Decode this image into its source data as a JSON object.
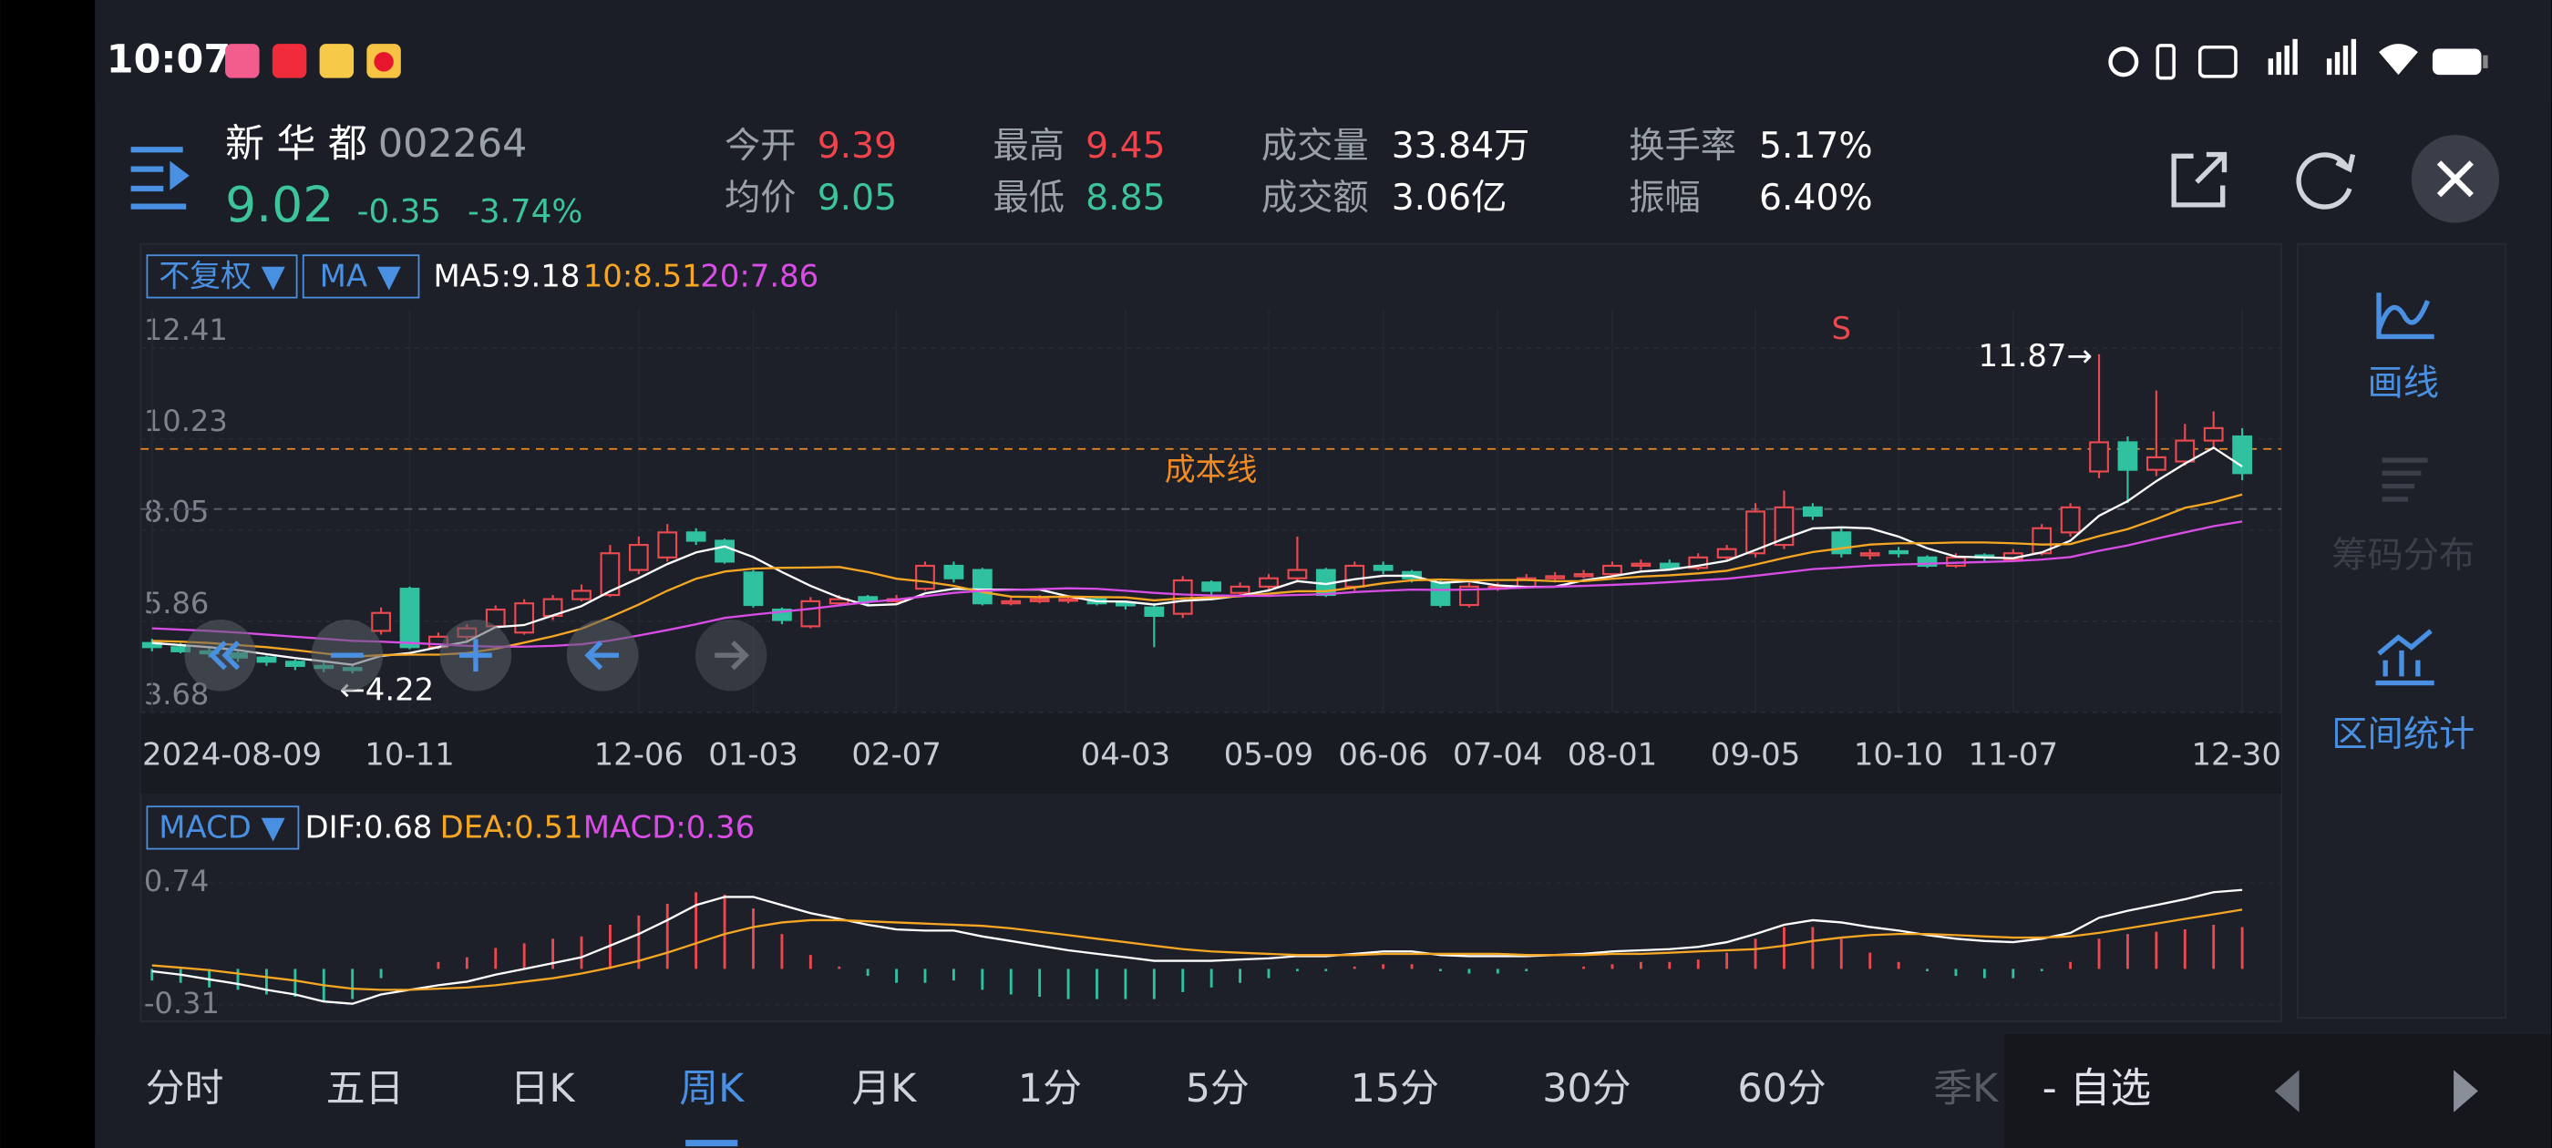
{
  "status_bar": {
    "time": "10:07"
  },
  "stock": {
    "name": "新 华 都",
    "code": "002264",
    "price": "9.02",
    "change": "-0.35",
    "change_pct": "-3.74%"
  },
  "stats": [
    {
      "label": "今开",
      "value": "9.39",
      "color": "#f0444c"
    },
    {
      "label": "均价",
      "value": "9.05",
      "color": "#3cc49a"
    },
    {
      "label": "最高",
      "value": "9.45",
      "color": "#f0444c"
    },
    {
      "label": "最低",
      "value": "8.85",
      "color": "#3cc49a"
    },
    {
      "label": "成交量",
      "value": "33.84万",
      "color": "#ffffff"
    },
    {
      "label": "成交额",
      "value": "3.06亿",
      "color": "#ffffff"
    },
    {
      "label": "换手率",
      "value": "5.17%",
      "color": "#ffffff"
    },
    {
      "label": "振幅",
      "value": "6.40%",
      "color": "#ffffff"
    }
  ],
  "chart_toolbar": {
    "adjust": "不复权 ▼",
    "indicator": "MA ▼"
  },
  "macd_toolbar": {
    "indicator": "MACD ▼"
  },
  "side_panel": [
    {
      "label": "画线",
      "enabled": true
    },
    {
      "label": "筹码分布",
      "enabled": false
    },
    {
      "label": "区间统计",
      "enabled": true
    }
  ],
  "tabs": [
    "分时",
    "五日",
    "日K",
    "周K",
    "月K",
    "1分",
    "5分",
    "15分",
    "30分",
    "60分",
    "季K"
  ],
  "active_tab": 3,
  "footer": {
    "watch": "- 自选"
  },
  "chart_data": [
    {
      "type": "candlestick",
      "up_color": "#ea4a4f",
      "down_color": "#2fc1a0",
      "ylim": [
        3.68,
        12.41
      ],
      "yticks": [
        12.41,
        10.23,
        8.05,
        5.86,
        3.68
      ],
      "grid": true,
      "categories": [
        "2024-08-09",
        null,
        null,
        null,
        null,
        null,
        null,
        null,
        null,
        "10-11",
        null,
        null,
        null,
        null,
        null,
        null,
        null,
        "12-06",
        null,
        null,
        null,
        "01-03",
        null,
        null,
        null,
        null,
        "02-07",
        null,
        null,
        null,
        null,
        null,
        null,
        null,
        "04-03",
        null,
        null,
        null,
        null,
        "05-09",
        null,
        null,
        null,
        "06-06",
        null,
        null,
        null,
        "07-04",
        null,
        null,
        null,
        "08-01",
        null,
        null,
        null,
        null,
        "09-05",
        null,
        null,
        null,
        null,
        "10-10",
        null,
        null,
        null,
        "11-07",
        null,
        null,
        null,
        null,
        null,
        null,
        null,
        "12-30"
      ],
      "open": [
        4.95,
        4.85,
        4.75,
        4.7,
        4.6,
        4.5,
        4.4,
        4.35,
        5.24,
        6.25,
        4.85,
        5.1,
        5.35,
        5.2,
        5.6,
        6.0,
        6.1,
        6.7,
        7.0,
        7.6,
        7.4,
        6.64,
        5.75,
        5.35,
        5.9,
        6.05,
        5.95,
        6.25,
        6.8,
        6.7,
        5.9,
        5.95,
        6.0,
        6.0,
        5.9,
        5.8,
        5.65,
        6.4,
        6.15,
        6.3,
        6.5,
        6.7,
        6.3,
        6.8,
        6.65,
        6.4,
        5.86,
        6.25,
        6.3,
        6.5,
        6.55,
        6.6,
        6.8,
        6.85,
        6.75,
        7.0,
        7.1,
        7.3,
        8.2,
        7.6,
        7.05,
        7.15,
        7.0,
        6.8,
        7.05,
        6.95,
        7.1,
        7.6,
        9.06,
        9.76,
        9.1,
        9.3,
        9.8,
        9.9
      ],
      "high": [
        5.05,
        4.95,
        4.85,
        4.75,
        4.65,
        4.55,
        4.5,
        4.45,
        5.8,
        6.3,
        5.2,
        5.4,
        5.85,
        6.0,
        6.1,
        6.35,
        7.3,
        7.5,
        7.8,
        7.7,
        7.45,
        6.7,
        5.8,
        6.05,
        6.1,
        6.1,
        6.1,
        6.9,
        6.9,
        6.75,
        6.05,
        6.1,
        6.1,
        6.05,
        5.95,
        5.9,
        6.55,
        6.45,
        6.4,
        6.6,
        7.5,
        6.75,
        6.9,
        6.9,
        6.7,
        6.45,
        6.4,
        6.4,
        6.6,
        6.65,
        6.7,
        6.9,
        6.95,
        6.95,
        7.1,
        7.3,
        8.3,
        8.6,
        8.3,
        7.7,
        7.2,
        7.25,
        7.05,
        7.1,
        7.1,
        7.2,
        7.8,
        8.3,
        11.87,
        9.9,
        11.0,
        10.2,
        10.5,
        10.1
      ],
      "low": [
        4.75,
        4.7,
        4.6,
        4.5,
        4.4,
        4.3,
        4.25,
        4.22,
        5.15,
        4.8,
        4.8,
        5.0,
        5.3,
        5.15,
        5.5,
        5.95,
        6.05,
        6.6,
        6.9,
        7.3,
        6.85,
        5.8,
        5.4,
        5.3,
        5.85,
        5.85,
        5.9,
        6.2,
        6.4,
        5.85,
        5.85,
        5.9,
        5.9,
        5.85,
        5.75,
        4.85,
        5.55,
        6.1,
        6.1,
        6.2,
        6.4,
        6.05,
        6.2,
        6.6,
        6.4,
        5.8,
        5.8,
        6.2,
        6.25,
        6.4,
        6.5,
        6.55,
        6.7,
        6.7,
        6.7,
        6.95,
        7.0,
        7.2,
        7.9,
        7.0,
        6.95,
        7.0,
        6.75,
        6.75,
        6.9,
        6.9,
        7.05,
        7.5,
        8.9,
        8.3,
        8.95,
        9.2,
        9.6,
        8.85
      ],
      "close": [
        4.85,
        4.75,
        4.7,
        4.6,
        4.5,
        4.4,
        4.35,
        4.3,
        5.67,
        4.85,
        5.1,
        5.3,
        5.75,
        5.9,
        6.0,
        6.2,
        7.1,
        7.3,
        7.6,
        7.4,
        6.9,
        5.86,
        5.5,
        5.95,
        6.0,
        5.95,
        6.0,
        6.8,
        6.5,
        5.9,
        5.95,
        6.0,
        6.0,
        5.9,
        5.85,
        5.6,
        6.45,
        6.2,
        6.3,
        6.5,
        6.7,
        6.1,
        6.8,
        6.7,
        6.5,
        5.86,
        6.3,
        6.3,
        6.5,
        6.55,
        6.6,
        6.8,
        6.85,
        6.75,
        7.0,
        7.2,
        8.1,
        8.2,
        8.0,
        7.1,
        7.1,
        7.1,
        6.8,
        7.0,
        7.0,
        7.1,
        7.7,
        8.2,
        9.76,
        9.1,
        9.4,
        9.8,
        10.1,
        9.02
      ],
      "series": [
        {
          "name": "MA5:9.18",
          "color": "#ffffff",
          "values": [
            4.95,
            4.9,
            4.85,
            4.78,
            4.68,
            4.59,
            4.51,
            4.43,
            4.64,
            4.71,
            4.85,
            4.98,
            5.33,
            5.38,
            5.61,
            5.83,
            6.19,
            6.5,
            6.84,
            7.12,
            7.26,
            7.01,
            6.65,
            6.32,
            6.04,
            5.85,
            5.88,
            6.14,
            6.25,
            6.23,
            6.23,
            6.23,
            6.07,
            5.95,
            5.94,
            5.87,
            5.96,
            6.0,
            6.08,
            6.21,
            6.43,
            6.36,
            6.48,
            6.56,
            6.56,
            6.39,
            6.43,
            6.33,
            6.29,
            6.3,
            6.45,
            6.55,
            6.66,
            6.71,
            6.8,
            6.92,
            7.18,
            7.45,
            7.7,
            7.72,
            7.7,
            7.5,
            7.22,
            7.02,
            7.0,
            6.98,
            7.12,
            7.4,
            8.0,
            8.35,
            8.83,
            9.25,
            9.63,
            9.18
          ]
        },
        {
          "name": "10:8.51",
          "color": "#f5a623",
          "values": [
            5.0,
            4.98,
            4.95,
            4.9,
            4.85,
            4.78,
            4.7,
            4.62,
            4.66,
            4.67,
            4.67,
            4.71,
            4.81,
            4.96,
            5.11,
            5.29,
            5.57,
            5.87,
            6.2,
            6.49,
            6.66,
            6.73,
            6.75,
            6.76,
            6.77,
            6.65,
            6.49,
            6.42,
            6.32,
            6.17,
            6.06,
            6.05,
            6.06,
            6.05,
            6.04,
            5.97,
            6.02,
            6.04,
            6.07,
            6.13,
            6.19,
            6.19,
            6.28,
            6.38,
            6.45,
            6.47,
            6.45,
            6.46,
            6.46,
            6.43,
            6.43,
            6.49,
            6.54,
            6.57,
            6.62,
            6.68,
            6.83,
            6.99,
            7.13,
            7.22,
            7.31,
            7.34,
            7.34,
            7.36,
            7.36,
            7.34,
            7.31,
            7.32,
            7.51,
            7.68,
            7.92,
            8.19,
            8.32,
            8.51
          ]
        },
        {
          "name": "20:7.86",
          "color": "#d94de6",
          "values": [
            5.3,
            5.27,
            5.24,
            5.2,
            5.15,
            5.1,
            5.05,
            5.0,
            4.98,
            4.95,
            4.92,
            4.88,
            4.86,
            4.86,
            4.88,
            4.92,
            5.01,
            5.13,
            5.26,
            5.4,
            5.55,
            5.63,
            5.7,
            5.77,
            5.85,
            5.93,
            5.99,
            6.07,
            6.15,
            6.2,
            6.22,
            6.24,
            6.26,
            6.25,
            6.2,
            6.15,
            6.11,
            6.09,
            6.08,
            6.08,
            6.1,
            6.12,
            6.17,
            6.2,
            6.23,
            6.22,
            6.23,
            6.25,
            6.28,
            6.3,
            6.32,
            6.34,
            6.37,
            6.41,
            6.45,
            6.49,
            6.56,
            6.64,
            6.72,
            6.76,
            6.8,
            6.83,
            6.85,
            6.87,
            6.89,
            6.91,
            6.95,
            7.01,
            7.16,
            7.29,
            7.45,
            7.6,
            7.75,
            7.86
          ]
        }
      ],
      "cost_line": {
        "label": "成本线",
        "value": 9.6,
        "color": "#f08a24"
      },
      "ref_line": {
        "value": 8.16,
        "color": "#5a5f6e"
      },
      "annotations": [
        {
          "text": "11.87→",
          "index": 68,
          "anchor": "high",
          "color": "#ffffff"
        },
        {
          "text": "←4.22",
          "index": 7,
          "anchor": "low",
          "color": "#ffffff"
        },
        {
          "text": "S",
          "index": 59,
          "anchor": "top",
          "color": "#ea4a4f"
        }
      ]
    },
    {
      "type": "macd",
      "up_color": "#ea4a4f",
      "down_color": "#2fc1a0",
      "ylim": [
        -0.31,
        0.74
      ],
      "yticks": [
        0.74,
        -0.31
      ],
      "series": [
        {
          "name": "DIF:0.68",
          "color": "#ffffff",
          "style": "line",
          "values": [
            -0.02,
            -0.05,
            -0.09,
            -0.13,
            -0.18,
            -0.22,
            -0.28,
            -0.3,
            -0.22,
            -0.18,
            -0.14,
            -0.11,
            -0.05,
            0.0,
            0.05,
            0.1,
            0.2,
            0.3,
            0.42,
            0.55,
            0.62,
            0.62,
            0.55,
            0.48,
            0.43,
            0.38,
            0.34,
            0.33,
            0.33,
            0.28,
            0.24,
            0.2,
            0.16,
            0.13,
            0.1,
            0.07,
            0.07,
            0.07,
            0.08,
            0.09,
            0.11,
            0.11,
            0.13,
            0.15,
            0.15,
            0.12,
            0.11,
            0.11,
            0.11,
            0.12,
            0.13,
            0.15,
            0.16,
            0.17,
            0.19,
            0.23,
            0.3,
            0.38,
            0.42,
            0.4,
            0.36,
            0.33,
            0.29,
            0.26,
            0.24,
            0.23,
            0.26,
            0.31,
            0.44,
            0.5,
            0.55,
            0.6,
            0.66,
            0.68
          ]
        },
        {
          "name": "DEA:0.51",
          "color": "#f5a623",
          "style": "line",
          "values": [
            0.03,
            0.01,
            -0.01,
            -0.04,
            -0.07,
            -0.1,
            -0.14,
            -0.17,
            -0.18,
            -0.18,
            -0.17,
            -0.16,
            -0.14,
            -0.11,
            -0.08,
            -0.04,
            0.01,
            0.07,
            0.14,
            0.22,
            0.3,
            0.36,
            0.4,
            0.42,
            0.42,
            0.41,
            0.4,
            0.39,
            0.38,
            0.37,
            0.35,
            0.32,
            0.29,
            0.26,
            0.23,
            0.2,
            0.17,
            0.15,
            0.14,
            0.13,
            0.12,
            0.12,
            0.12,
            0.13,
            0.13,
            0.13,
            0.13,
            0.13,
            0.12,
            0.12,
            0.12,
            0.13,
            0.13,
            0.14,
            0.15,
            0.16,
            0.17,
            0.2,
            0.24,
            0.27,
            0.29,
            0.3,
            0.3,
            0.29,
            0.28,
            0.27,
            0.27,
            0.28,
            0.31,
            0.35,
            0.39,
            0.43,
            0.47,
            0.51
          ]
        },
        {
          "name": "MACD:0.36",
          "color": "#d94de6",
          "style": "bar",
          "values": [
            -0.1,
            -0.12,
            -0.16,
            -0.18,
            -0.22,
            -0.24,
            -0.28,
            -0.26,
            -0.08,
            0.0,
            0.06,
            0.1,
            0.18,
            0.22,
            0.26,
            0.28,
            0.38,
            0.46,
            0.56,
            0.66,
            0.64,
            0.52,
            0.3,
            0.12,
            0.02,
            -0.06,
            -0.12,
            -0.12,
            -0.1,
            -0.18,
            -0.22,
            -0.24,
            -0.26,
            -0.26,
            -0.26,
            -0.26,
            -0.2,
            -0.16,
            -0.12,
            -0.08,
            -0.02,
            -0.02,
            0.02,
            0.04,
            0.04,
            -0.02,
            -0.04,
            -0.04,
            -0.02,
            0.0,
            0.02,
            0.04,
            0.06,
            0.06,
            0.08,
            0.14,
            0.26,
            0.36,
            0.36,
            0.26,
            0.14,
            0.06,
            -0.02,
            -0.06,
            -0.08,
            -0.08,
            -0.02,
            0.06,
            0.26,
            0.3,
            0.32,
            0.34,
            0.38,
            0.36
          ]
        }
      ]
    }
  ]
}
